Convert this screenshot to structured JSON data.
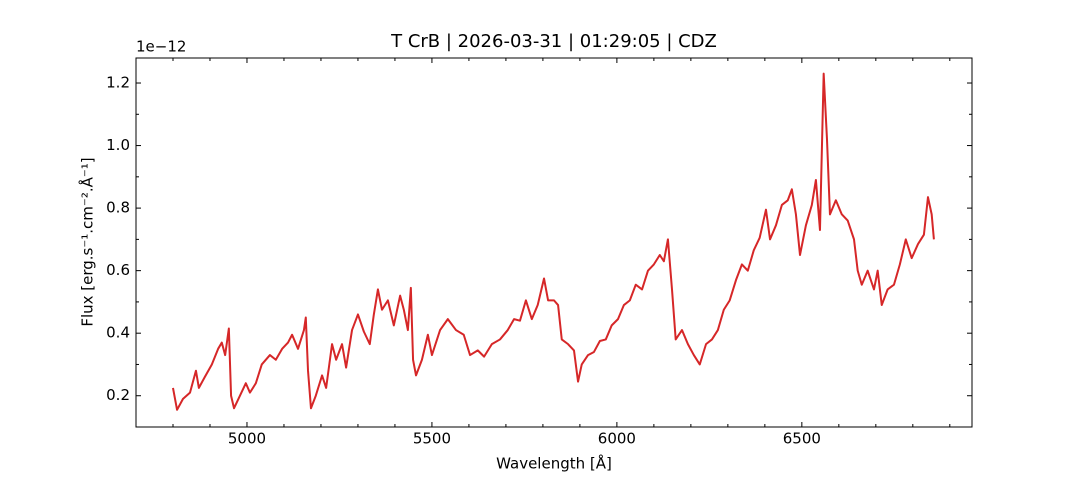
{
  "chart_data": {
    "type": "line",
    "title": "T CrB | 2026-03-31 | 01:29:05 | CDZ",
    "xlabel": "Wavelength [Å]",
    "ylabel": "Flux [erg.s⁻¹.cm⁻².Å⁻¹]",
    "y_offset_label": "1e−12",
    "xlim": [
      4700,
      6960
    ],
    "ylim": [
      0.1,
      1.28
    ],
    "xticks": [
      5000,
      5500,
      6000,
      6500
    ],
    "yticks": [
      0.2,
      0.4,
      0.6,
      0.8,
      {
        "value": 1,
        "label": "1.0"
      },
      1.2
    ],
    "xminorticks": [
      4700,
      4800,
      4900,
      5100,
      5200,
      5300,
      5400,
      5600,
      5700,
      5800,
      5900,
      6100,
      6200,
      6300,
      6400,
      6600,
      6700,
      6800,
      6900
    ],
    "yminorticks": [
      0.1,
      0.3,
      0.5,
      0.7,
      0.9,
      1.1
    ],
    "x": [
      4800,
      4811,
      4827,
      4846,
      4862,
      4870,
      4886,
      4905,
      4922,
      4932,
      4941,
      4951,
      4957,
      4965,
      4981,
      4997,
      5008,
      5024,
      5040,
      5062,
      5078,
      5095,
      5111,
      5122,
      5138,
      5154,
      5159,
      5165,
      5173,
      5186,
      5203,
      5214,
      5230,
      5241,
      5257,
      5268,
      5284,
      5300,
      5316,
      5332,
      5343,
      5354,
      5365,
      5381,
      5397,
      5414,
      5424,
      5435,
      5443,
      5449,
      5457,
      5473,
      5489,
      5500,
      5522,
      5543,
      5565,
      5586,
      5603,
      5624,
      5641,
      5662,
      5684,
      5705,
      5722,
      5738,
      5754,
      5770,
      5786,
      5803,
      5814,
      5830,
      5841,
      5851,
      5868,
      5884,
      5895,
      5905,
      5922,
      5938,
      5954,
      5970,
      5986,
      6003,
      6019,
      6035,
      6051,
      6068,
      6084,
      6100,
      6116,
      6127,
      6138,
      6149,
      6159,
      6176,
      6192,
      6208,
      6224,
      6241,
      6257,
      6273,
      6289,
      6305,
      6322,
      6338,
      6354,
      6370,
      6386,
      6403,
      6414,
      6430,
      6446,
      6462,
      6473,
      6484,
      6495,
      6511,
      6527,
      6538,
      6549,
      6559,
      6568,
      6576,
      6592,
      6608,
      6624,
      6641,
      6651,
      6662,
      6678,
      6695,
      6705,
      6716,
      6732,
      6749,
      6765,
      6781,
      6797,
      6814,
      6830,
      6841,
      6851,
      6857
    ],
    "series": [
      {
        "name": "flux",
        "color": "#d62728",
        "values": [
          0.225,
          0.155,
          0.19,
          0.21,
          0.28,
          0.225,
          0.26,
          0.3,
          0.35,
          0.37,
          0.33,
          0.415,
          0.2,
          0.16,
          0.2,
          0.24,
          0.21,
          0.24,
          0.3,
          0.33,
          0.315,
          0.35,
          0.37,
          0.395,
          0.35,
          0.41,
          0.45,
          0.28,
          0.16,
          0.2,
          0.265,
          0.225,
          0.365,
          0.315,
          0.365,
          0.29,
          0.41,
          0.46,
          0.405,
          0.365,
          0.46,
          0.54,
          0.475,
          0.505,
          0.425,
          0.52,
          0.475,
          0.41,
          0.545,
          0.315,
          0.265,
          0.315,
          0.395,
          0.33,
          0.41,
          0.445,
          0.41,
          0.395,
          0.33,
          0.345,
          0.325,
          0.365,
          0.38,
          0.41,
          0.445,
          0.44,
          0.505,
          0.445,
          0.49,
          0.575,
          0.505,
          0.505,
          0.49,
          0.38,
          0.365,
          0.345,
          0.245,
          0.3,
          0.33,
          0.34,
          0.375,
          0.38,
          0.425,
          0.445,
          0.49,
          0.505,
          0.555,
          0.54,
          0.6,
          0.62,
          0.65,
          0.63,
          0.7,
          0.54,
          0.38,
          0.41,
          0.365,
          0.33,
          0.3,
          0.365,
          0.38,
          0.41,
          0.475,
          0.505,
          0.57,
          0.62,
          0.6,
          0.665,
          0.705,
          0.795,
          0.7,
          0.745,
          0.81,
          0.825,
          0.86,
          0.78,
          0.65,
          0.745,
          0.81,
          0.89,
          0.73,
          1.23,
          1.02,
          0.78,
          0.825,
          0.78,
          0.76,
          0.7,
          0.6,
          0.555,
          0.6,
          0.54,
          0.6,
          0.49,
          0.54,
          0.555,
          0.62,
          0.7,
          0.64,
          0.685,
          0.715,
          0.835,
          0.78,
          0.7
        ]
      }
    ]
  }
}
